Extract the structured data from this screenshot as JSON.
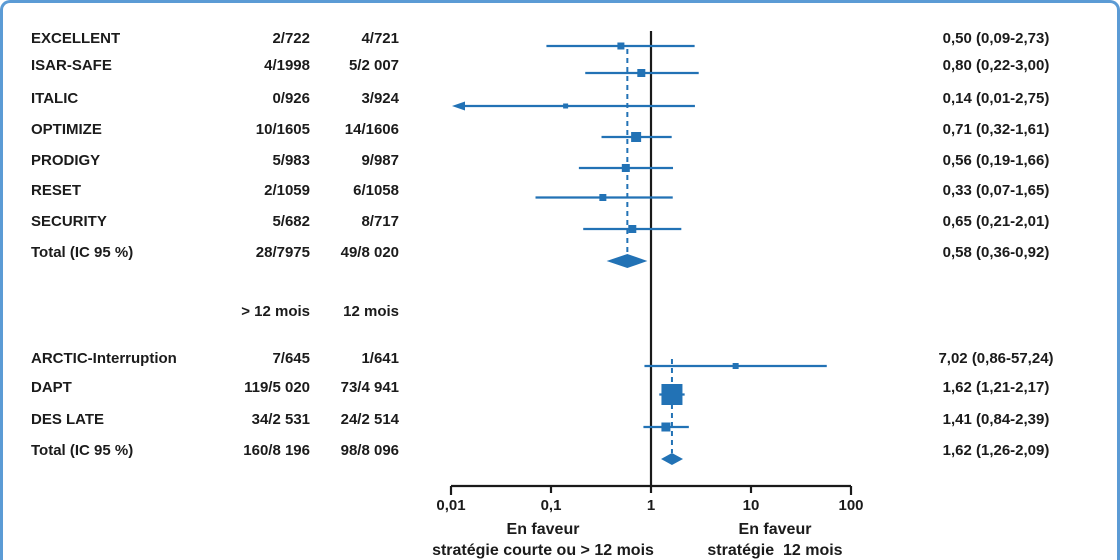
{
  "chart_data": {
    "type": "forest",
    "effect_measure": "odds-ratio",
    "x_axis": {
      "scale": "log",
      "ticks": [
        0.01,
        0.1,
        1,
        10,
        100
      ],
      "tick_labels": [
        "0,01",
        "0,1",
        "1",
        "10",
        "100"
      ],
      "reference_line": 1
    },
    "count_headers": {
      "col1": "> 12 mois",
      "col2": "12 mois"
    },
    "footer": {
      "left": [
        "En faveur",
        "stratégie courte ou > 12 mois"
      ],
      "right": [
        "En faveur",
        "stratégie  12 mois"
      ]
    },
    "groups": [
      {
        "rows": [
          {
            "name": "EXCELLENT",
            "col1": "2/722",
            "col2": "4/721",
            "or": 0.5,
            "lo": 0.09,
            "hi": 2.73,
            "label": "0,50 (0,09-2,73)",
            "weight": 7,
            "arrow_lo": false
          },
          {
            "name": "ISAR-SAFE",
            "col1": "4/1998",
            "col2": "5/2 007",
            "or": 0.8,
            "lo": 0.22,
            "hi": 3.0,
            "label": "0,80 (0,22-3,00)",
            "weight": 8,
            "arrow_lo": false
          },
          {
            "name": "ITALIC",
            "col1": "0/926",
            "col2": "3/924",
            "or": 0.14,
            "lo": 0.01,
            "hi": 2.75,
            "label": "0,14 (0,01-2,75)",
            "weight": 5,
            "arrow_lo": true
          },
          {
            "name": "OPTIMIZE",
            "col1": "10/1605",
            "col2": "14/1606",
            "or": 0.71,
            "lo": 0.32,
            "hi": 1.61,
            "label": "0,71 (0,32-1,61)",
            "weight": 10,
            "arrow_lo": false
          },
          {
            "name": "PRODIGY",
            "col1": "5/983",
            "col2": "9/987",
            "or": 0.56,
            "lo": 0.19,
            "hi": 1.66,
            "label": "0,56 (0,19-1,66)",
            "weight": 8,
            "arrow_lo": false
          },
          {
            "name": "RESET",
            "col1": "2/1059",
            "col2": "6/1058",
            "or": 0.33,
            "lo": 0.07,
            "hi": 1.65,
            "label": "0,33 (0,07-1,65)",
            "weight": 7,
            "arrow_lo": false
          },
          {
            "name": "SECURITY",
            "col1": "5/682",
            "col2": "8/717",
            "or": 0.65,
            "lo": 0.21,
            "hi": 2.01,
            "label": "0,65 (0,21-2,01)",
            "weight": 8,
            "arrow_lo": false
          }
        ],
        "total": {
          "name": "Total (IC 95 %)",
          "col1": "28/7975",
          "col2": "49/8 020",
          "or": 0.58,
          "lo": 0.36,
          "hi": 0.92,
          "label": "0,58 (0,36-0,92)"
        }
      },
      {
        "rows": [
          {
            "name": "ARCTIC-Interruption",
            "col1": "7/645",
            "col2": "1/641",
            "or": 7.02,
            "lo": 0.86,
            "hi": 57.24,
            "label": "7,02 (0,86-57,24)",
            "weight": 6,
            "arrow_lo": false
          },
          {
            "name": "DAPT",
            "col1": "119/5 020",
            "col2": "73/4 941",
            "or": 1.62,
            "lo": 1.21,
            "hi": 2.17,
            "label": "1,62 (1,21-2,17)",
            "weight": 21,
            "arrow_lo": false
          },
          {
            "name": "DES LATE",
            "col1": "34/2 531",
            "col2": "24/2 514",
            "or": 1.41,
            "lo": 0.84,
            "hi": 2.39,
            "label": "1,41 (0,84-2,39)",
            "weight": 9,
            "arrow_lo": false
          }
        ],
        "total": {
          "name": "Total (IC 95 %)",
          "col1": "160/8 196",
          "col2": "98/8 096",
          "or": 1.62,
          "lo": 1.26,
          "hi": 2.09,
          "label": "1,62 (1,26-2,09)"
        }
      }
    ],
    "colors": {
      "blue": "#2272b5",
      "border": "#5b9bd5",
      "axis": "#1a1a1a",
      "text": "#1b1b1b"
    }
  }
}
